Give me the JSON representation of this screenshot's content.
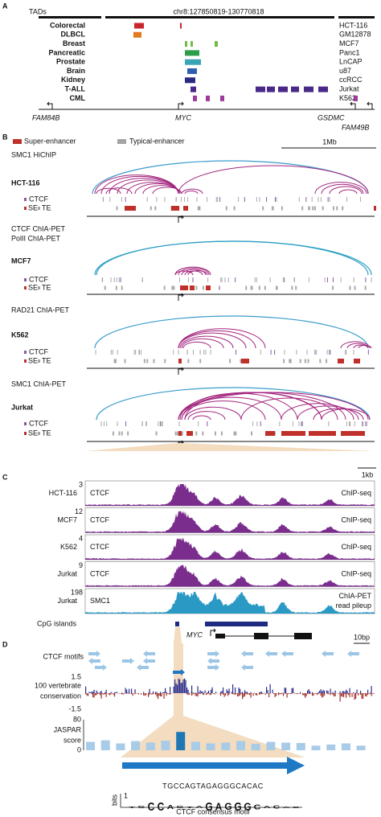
{
  "panels": [
    {
      "label": "A",
      "tads": "TADs",
      "region": "chr8:127850819-130770818",
      "tracks": [
        {
          "tissue": "Colorectal",
          "cell_line": "HCT-116",
          "color": "#c8262c"
        },
        {
          "tissue": "DLBCL",
          "cell_line": "GM12878",
          "color": "#e07b1f"
        },
        {
          "tissue": "Breast",
          "cell_line": "MCF7",
          "color": "#72be44"
        },
        {
          "tissue": "Pancreatic",
          "cell_line": "Panc1",
          "color": "#2c9d4a"
        },
        {
          "tissue": "Prostate",
          "cell_line": "LnCAP",
          "color": "#3aa3b4"
        },
        {
          "tissue": "Brain",
          "cell_line": "u87",
          "color": "#2f5fb0"
        },
        {
          "tissue": "Kidney",
          "cell_line": "ccRCC",
          "color": "#2b2a82"
        },
        {
          "tissue": "T-ALL",
          "cell_line": "Jurkat",
          "color": "#4a2888"
        },
        {
          "tissue": "CML",
          "cell_line": "K562",
          "color": "#9b3a9c"
        }
      ],
      "genes": [
        "FAM84B",
        "MYC",
        "GSDMC",
        "FAM49B"
      ]
    },
    {
      "label": "B",
      "legend": [
        {
          "name": "Super-enhancer",
          "color": "#c0302a"
        },
        {
          "name": "Typical-enhancer",
          "color": "#a3a3a3"
        }
      ],
      "scale": "1Mb",
      "ctcf": "CTCF",
      "se": "SE",
      "te": "TE",
      "blocks": [
        {
          "assays": [
            {
              "name": "SMC1 HiChIP",
              "color": "#a3257e"
            }
          ],
          "cell": "HCT-116"
        },
        {
          "assays": [
            {
              "name": "CTCF ChIA-PET",
              "color": "#2d9fc4"
            },
            {
              "name": "PolII ChIA-PET",
              "color": "#a3257e"
            }
          ],
          "cell": "MCF7"
        },
        {
          "assays": [
            {
              "name": "RAD21 ChIA-PET",
              "color": "#a3257e"
            }
          ],
          "cell": "K562"
        },
        {
          "assays": [
            {
              "name": "SMC1 ChIA-PET",
              "color": "#a3257e"
            }
          ],
          "cell": "Jurkat"
        }
      ]
    },
    {
      "label": "C",
      "scale": "1kb",
      "tracks": [
        {
          "cell": "HCT-116",
          "max": 3,
          "factor": "CTCF",
          "assay": [
            "ChIP-seq"
          ],
          "color": "#7b2d8e"
        },
        {
          "cell": "MCF7",
          "max": 12,
          "factor": "CTCF",
          "assay": [
            "ChIP-seq"
          ],
          "color": "#7b2d8e"
        },
        {
          "cell": "K562",
          "max": 4,
          "factor": "CTCF",
          "assay": [
            "ChIP-seq"
          ],
          "color": "#7b2d8e"
        },
        {
          "cell": "Jurkat",
          "max": 9,
          "factor": "CTCF",
          "assay": [
            "ChIP-seq"
          ],
          "color": "#7b2d8e"
        },
        {
          "cell": "Jurkat",
          "max": 198,
          "factor": "SMC1",
          "assay": [
            "ChIA-PET",
            "read pileup"
          ],
          "color": "#2a9ac4"
        }
      ],
      "cpg": "CpG islands",
      "gene": "MYC"
    },
    {
      "label": "D",
      "scale": "10bp",
      "motifs": "CTCF motifs",
      "conservation": {
        "label": [
          "100 vertebrate",
          "conservation"
        ],
        "ticks": [
          1.5,
          -1.5
        ]
      },
      "jaspar": {
        "label": [
          "JASPAR",
          "score"
        ],
        "ylim": [
          0,
          80
        ],
        "yticks": [
          80,
          0
        ],
        "values": [
          22,
          26,
          18,
          24,
          20,
          25,
          48,
          22,
          18,
          20,
          24,
          17,
          22,
          20,
          19,
          12,
          15,
          18,
          12
        ]
      },
      "sequence": "TGCCAGTAGAGGGCACAC",
      "logo_axis": "bits",
      "logo_ticks": [
        1
      ],
      "motif_title": "CTCF consensus motif"
    }
  ]
}
